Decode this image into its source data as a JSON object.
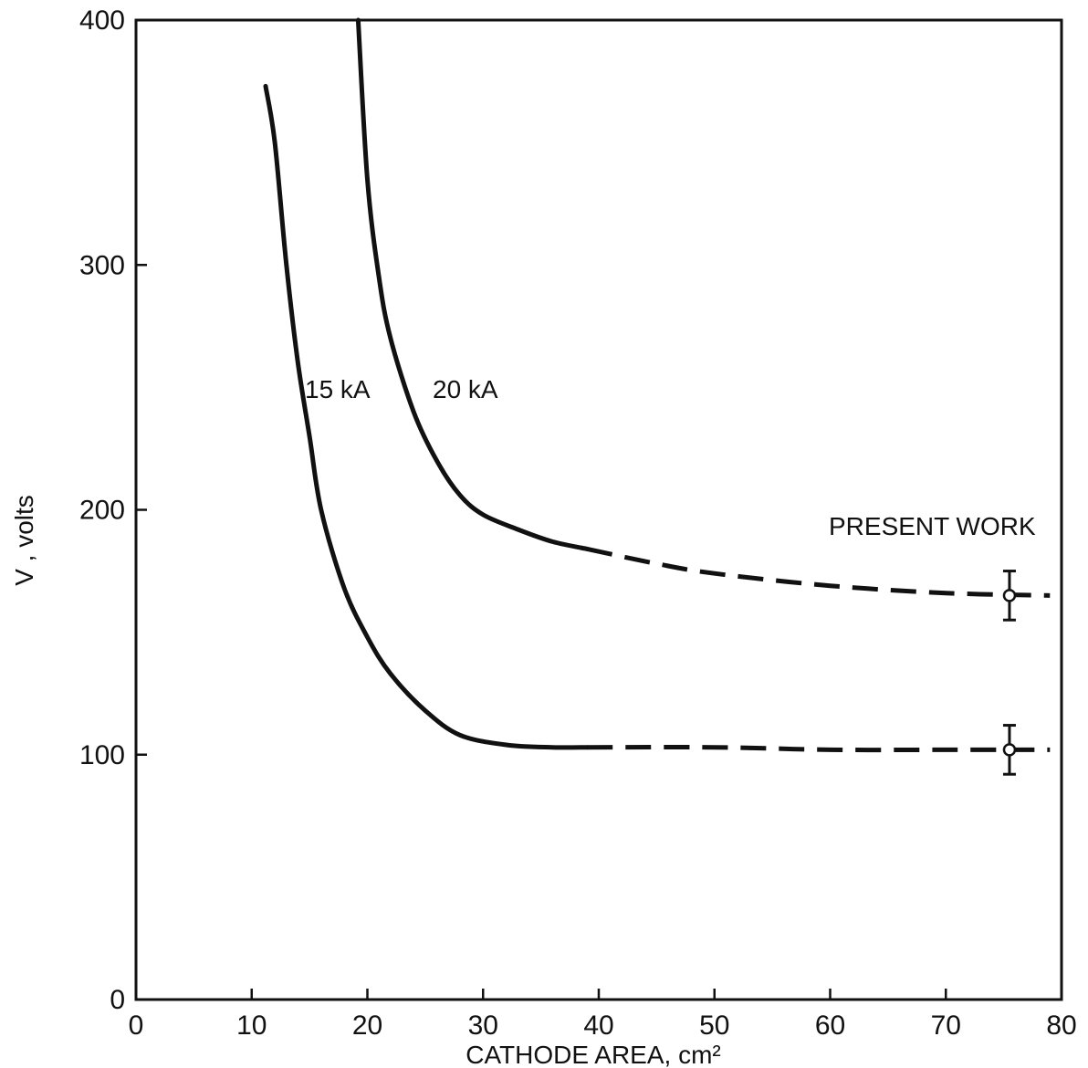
{
  "chart_data": {
    "type": "line",
    "xlabel": "CATHODE AREA, cm²",
    "ylabel": "V , volts",
    "xlim": [
      0,
      80
    ],
    "ylim": [
      0,
      400
    ],
    "xticks": [
      0,
      10,
      20,
      30,
      40,
      50,
      60,
      70,
      80
    ],
    "yticks": [
      0,
      100,
      200,
      300,
      400
    ],
    "grid": false,
    "series": [
      {
        "name": "15 kA",
        "solid": [
          [
            11.2,
            373
          ],
          [
            12,
            350
          ],
          [
            13,
            300
          ],
          [
            14,
            260
          ],
          [
            15,
            230
          ],
          [
            16,
            200
          ],
          [
            18,
            168
          ],
          [
            20,
            148
          ],
          [
            22,
            133
          ],
          [
            25,
            118
          ],
          [
            28,
            108
          ],
          [
            32,
            104
          ],
          [
            36,
            103
          ],
          [
            39,
            103
          ]
        ],
        "dashed": [
          [
            39,
            103
          ],
          [
            50,
            103
          ],
          [
            60,
            102
          ],
          [
            70,
            102
          ],
          [
            79,
            102
          ]
        ]
      },
      {
        "name": "20 kA",
        "solid": [
          [
            19.2,
            400
          ],
          [
            20,
            335
          ],
          [
            21,
            295
          ],
          [
            22,
            270
          ],
          [
            24,
            240
          ],
          [
            26,
            220
          ],
          [
            28,
            206
          ],
          [
            30,
            198
          ],
          [
            33,
            192
          ],
          [
            36,
            187
          ],
          [
            39,
            184
          ]
        ],
        "dashed": [
          [
            39,
            184
          ],
          [
            45,
            178
          ],
          [
            50,
            174
          ],
          [
            60,
            169
          ],
          [
            70,
            166
          ],
          [
            79,
            165
          ]
        ]
      }
    ],
    "annotations": {
      "present_work_label": "PRESENT WORK",
      "points": [
        {
          "x": 75.5,
          "y": 165,
          "err": 10
        },
        {
          "x": 75.5,
          "y": 102,
          "err": 10
        }
      ]
    }
  }
}
